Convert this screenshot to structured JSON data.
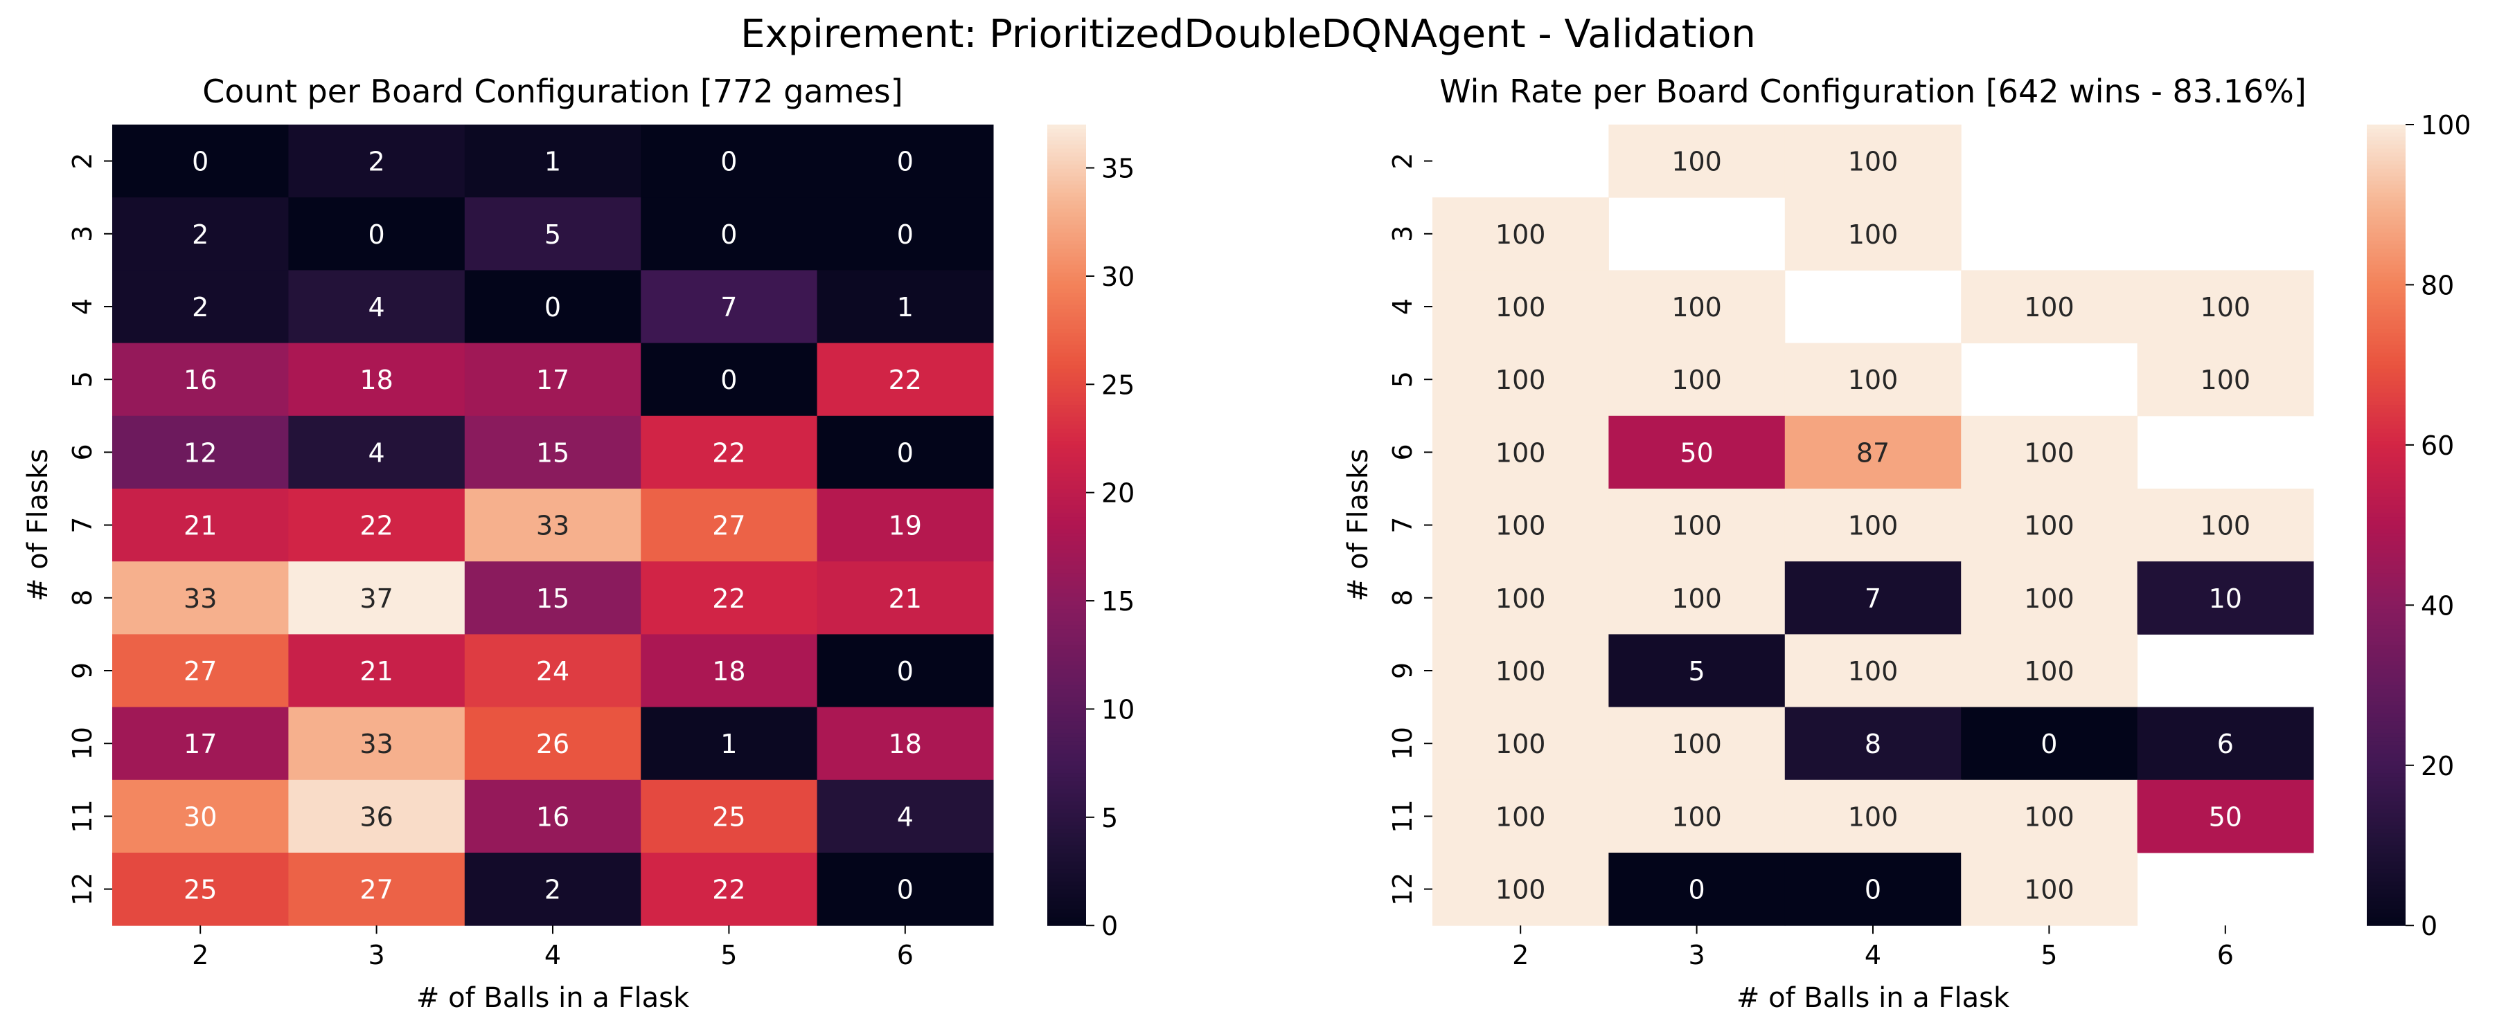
{
  "suptitle": "Expirement: PrioritizedDoubleDQNAgent - Validation",
  "chart_data": [
    {
      "type": "heatmap",
      "title": "Count per Board Configuration [772 games]",
      "xlabel": "# of Balls in a Flask",
      "ylabel": "# of Flasks",
      "x": [
        "2",
        "3",
        "4",
        "5",
        "6"
      ],
      "y": [
        "2",
        "3",
        "4",
        "5",
        "6",
        "7",
        "8",
        "9",
        "10",
        "11",
        "12"
      ],
      "values": [
        [
          0,
          2,
          1,
          0,
          0
        ],
        [
          2,
          0,
          5,
          0,
          0
        ],
        [
          2,
          4,
          0,
          7,
          1
        ],
        [
          16,
          18,
          17,
          0,
          22
        ],
        [
          12,
          4,
          15,
          22,
          0
        ],
        [
          21,
          22,
          33,
          27,
          19
        ],
        [
          33,
          37,
          15,
          22,
          21
        ],
        [
          27,
          21,
          24,
          18,
          0
        ],
        [
          17,
          33,
          26,
          1,
          18
        ],
        [
          30,
          36,
          16,
          25,
          4
        ],
        [
          25,
          27,
          2,
          22,
          0
        ]
      ],
      "colorbar": {
        "range": [
          0,
          37
        ],
        "ticks": [
          0,
          5,
          10,
          15,
          20,
          25,
          30,
          35
        ]
      },
      "colormap": "rocket",
      "grid": false
    },
    {
      "type": "heatmap",
      "title": "Win Rate per Board Configuration [642 wins - 83.16%]",
      "xlabel": "# of Balls in a Flask",
      "ylabel": "# of Flasks",
      "x": [
        "2",
        "3",
        "4",
        "5",
        "6"
      ],
      "y": [
        "2",
        "3",
        "4",
        "5",
        "6",
        "7",
        "8",
        "9",
        "10",
        "11",
        "12"
      ],
      "values": [
        [
          null,
          100,
          100,
          null,
          null
        ],
        [
          100,
          null,
          100,
          null,
          null
        ],
        [
          100,
          100,
          null,
          100,
          100
        ],
        [
          100,
          100,
          100,
          null,
          100
        ],
        [
          100,
          50,
          87,
          100,
          null
        ],
        [
          100,
          100,
          100,
          100,
          100
        ],
        [
          100,
          100,
          7,
          100,
          10
        ],
        [
          100,
          5,
          100,
          100,
          null
        ],
        [
          100,
          100,
          8,
          0,
          6
        ],
        [
          100,
          100,
          100,
          100,
          50
        ],
        [
          100,
          0,
          0,
          100,
          null
        ]
      ],
      "colorbar": {
        "range": [
          0,
          100
        ],
        "ticks": [
          0,
          20,
          40,
          60,
          80,
          100
        ]
      },
      "colormap": "rocket",
      "grid": false
    }
  ]
}
